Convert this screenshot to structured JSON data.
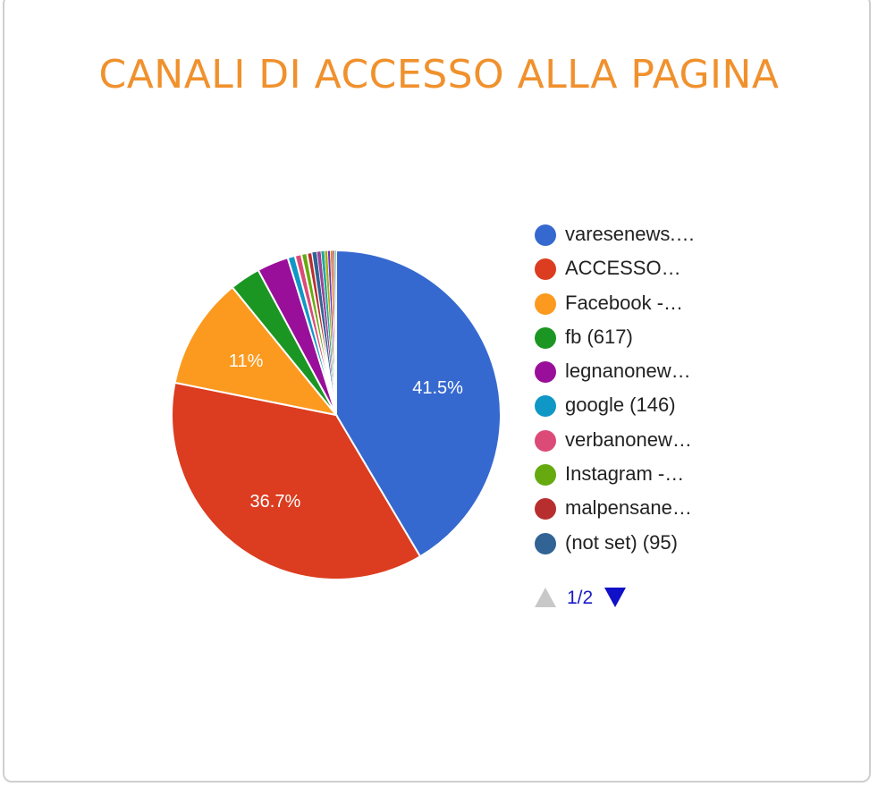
{
  "colors": {
    "title": "#f0912d",
    "pager_active": "#1010c8",
    "pager_inactive": "#c8c8c8"
  },
  "chart_data": {
    "type": "pie",
    "title": "CANALI DI ACCESSO ALLA PAGINA",
    "legend_position": "right",
    "legend": [
      {
        "label": "varesenews.…",
        "color": "#3669cf"
      },
      {
        "label": "ACCESSO…",
        "color": "#dc3c1f"
      },
      {
        "label": "Facebook -…",
        "color": "#fc9a1f"
      },
      {
        "label": "fb (617)",
        "color": "#1b9623"
      },
      {
        "label": "legnanonew…",
        "color": "#990f9a"
      },
      {
        "label": "google (146)",
        "color": "#0f97c6"
      },
      {
        "label": "verbanonew…",
        "color": "#dc4a77"
      },
      {
        "label": "Instagram -…",
        "color": "#66aa10"
      },
      {
        "label": "malpensane…",
        "color": "#b82e2e"
      },
      {
        "label": "(not set) (95)",
        "color": "#316394"
      }
    ],
    "slices": [
      {
        "value": 41.5,
        "color": "#3669cf",
        "label": "41.5%"
      },
      {
        "value": 36.7,
        "color": "#dc3c1f",
        "label": "36.7%"
      },
      {
        "value": 11.0,
        "color": "#fc9a1f",
        "label": "11%"
      },
      {
        "value": 3.0,
        "color": "#1b9623"
      },
      {
        "value": 3.1,
        "color": "#990f9a"
      },
      {
        "value": 0.72,
        "color": "#0f97c6"
      },
      {
        "value": 0.64,
        "color": "#dc4a77"
      },
      {
        "value": 0.56,
        "color": "#66aa10"
      },
      {
        "value": 0.5,
        "color": "#b82e2e"
      },
      {
        "value": 0.47,
        "color": "#316394"
      },
      {
        "value": 0.4,
        "color": "#994499"
      },
      {
        "value": 0.35,
        "color": "#22aa99"
      },
      {
        "value": 0.3,
        "color": "#aaaa11"
      },
      {
        "value": 0.26,
        "color": "#6633cc"
      },
      {
        "value": 0.2,
        "color": "#e67300"
      },
      {
        "value": 0.15,
        "color": "#8b0707"
      },
      {
        "value": 0.12,
        "color": "#329262"
      },
      {
        "value": 0.1,
        "color": "#5574a6"
      }
    ],
    "pager": {
      "text": "1/2"
    }
  }
}
